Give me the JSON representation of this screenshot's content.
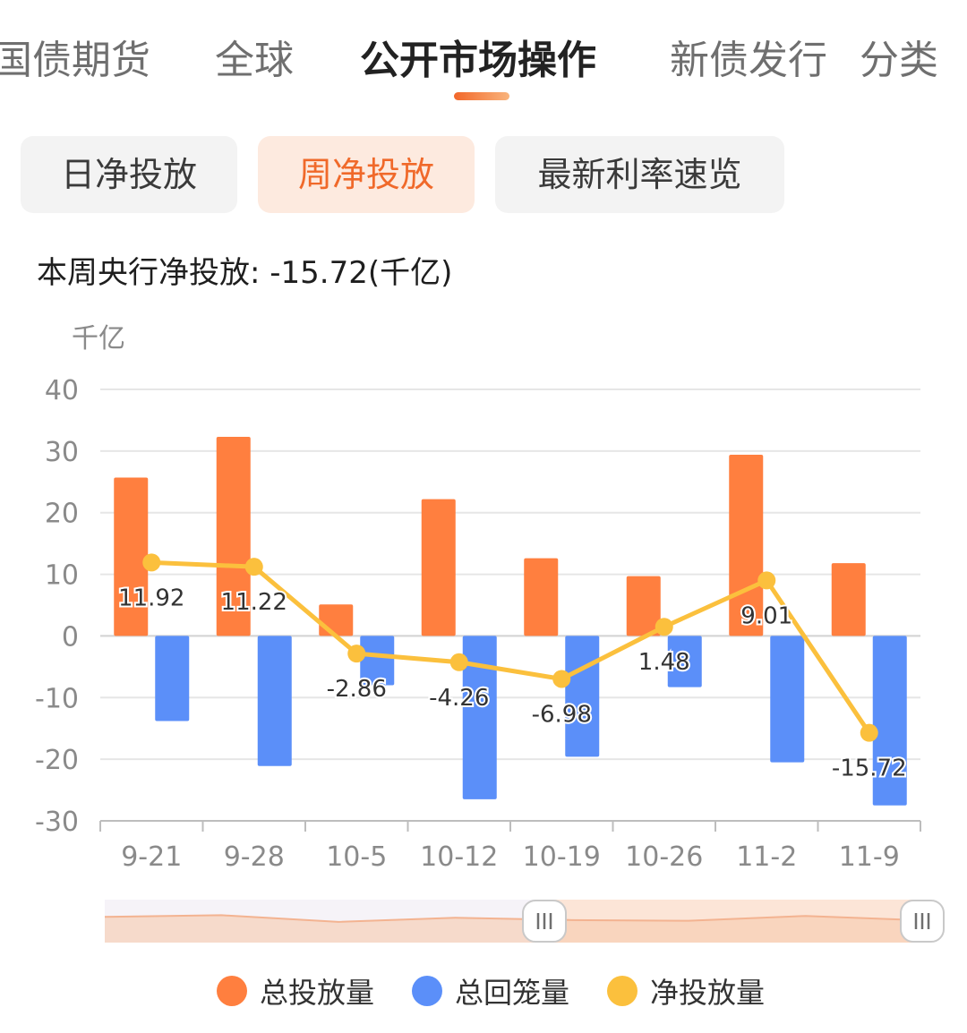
{
  "tabs": [
    {
      "label": "国债期货",
      "active": false
    },
    {
      "label": "全球",
      "active": false
    },
    {
      "label": "公开市场操作",
      "active": true
    },
    {
      "label": "新债发行",
      "active": false
    },
    {
      "label": "分类",
      "active": false
    }
  ],
  "segments": [
    {
      "label": "日净投放",
      "active": false
    },
    {
      "label": "周净投放",
      "active": true
    },
    {
      "label": "最新利率速览",
      "active": false
    }
  ],
  "summary": "本周央行净投放: -15.72(千亿)",
  "colors": {
    "accent": "#f0692a",
    "injection": "#ff7f3f",
    "withdrawal": "#5b8ff9",
    "net": "#fbc03d"
  },
  "chart_data": {
    "type": "bar",
    "unit": "千亿",
    "categories": [
      "9-21",
      "9-28",
      "10-5",
      "10-12",
      "10-19",
      "10-26",
      "11-2",
      "11-9"
    ],
    "ylim": [
      -30,
      40
    ],
    "yticks": [
      40,
      30,
      20,
      10,
      0,
      -10,
      -20,
      -30
    ],
    "grid": true,
    "legend_position": "bottom",
    "series": [
      {
        "name": "总投放量",
        "kind": "bar",
        "color": "#ff7f3f",
        "values": [
          25.7,
          32.3,
          5.1,
          22.2,
          12.6,
          9.7,
          29.4,
          11.8
        ]
      },
      {
        "name": "总回笼量",
        "kind": "bar",
        "color": "#5b8ff9",
        "values": [
          -13.8,
          -21.1,
          -8.0,
          -26.5,
          -19.6,
          -8.3,
          -20.5,
          -27.5
        ]
      },
      {
        "name": "净投放量",
        "kind": "line",
        "color": "#fbc03d",
        "values": [
          11.92,
          11.22,
          -2.86,
          -4.26,
          -6.98,
          1.48,
          9.01,
          -15.72
        ],
        "labels": [
          "11.92",
          "11.22",
          "-2.86",
          "-4.26",
          "-6.98",
          "1.48",
          "9.01",
          "-15.72"
        ]
      }
    ]
  }
}
